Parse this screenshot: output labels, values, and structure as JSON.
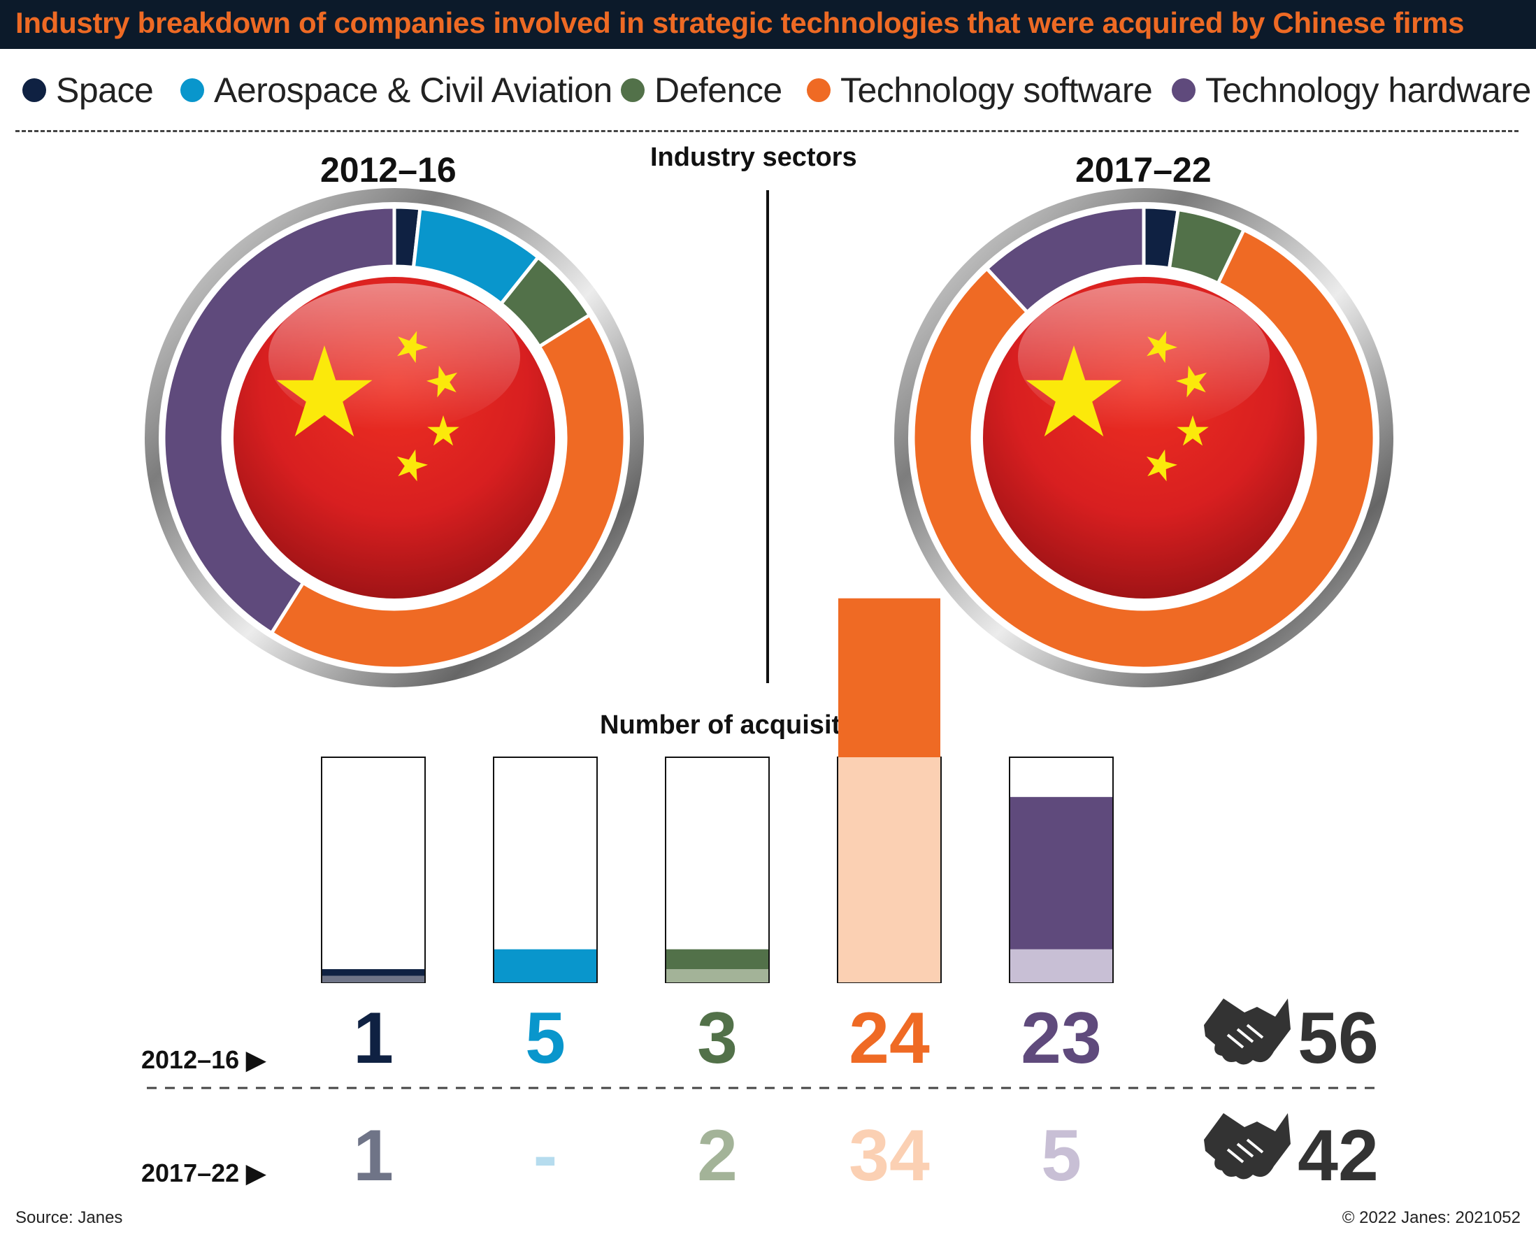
{
  "title": "Industry breakdown of companies involved in strategic technologies that were acquired by Chinese firms",
  "legend": [
    {
      "label": "Space",
      "color": "#0f2142"
    },
    {
      "label": "Aerospace & Civil Aviation",
      "color": "#0996cc"
    },
    {
      "label": "Defence",
      "color": "#527149"
    },
    {
      "label": "Technology software",
      "color": "#ef6a24"
    },
    {
      "label": "Technology hardware",
      "color": "#5f4a7c"
    }
  ],
  "donut_headings": {
    "left": "2012–16",
    "center": "Industry sectors",
    "right": "2017–22"
  },
  "bars_heading": "Number of acquisitions",
  "row_labels": {
    "row1": "2012–16 ▶",
    "row2": "2017–22 ▶"
  },
  "totals": {
    "row1": "56",
    "row2": "42"
  },
  "icons": {
    "flag_emblem": "china-flag-icon",
    "total_marker": "handshake-icon"
  },
  "chart_data": [
    {
      "type": "pie",
      "title": "2012–16",
      "categories": [
        "Space",
        "Aerospace & Civil Aviation",
        "Defence",
        "Technology software",
        "Technology hardware"
      ],
      "values": [
        1,
        5,
        3,
        24,
        23
      ],
      "colors": [
        "#0f2142",
        "#0996cc",
        "#527149",
        "#ef6a24",
        "#5f4a7c"
      ]
    },
    {
      "type": "pie",
      "title": "2017–22",
      "categories": [
        "Space",
        "Aerospace & Civil Aviation",
        "Defence",
        "Technology software",
        "Technology hardware"
      ],
      "values": [
        1,
        0,
        2,
        34,
        5
      ],
      "colors": [
        "#0f2142",
        "#0996cc",
        "#527149",
        "#ef6a24",
        "#5f4a7c"
      ]
    },
    {
      "type": "bar",
      "title": "Number of acquisitions",
      "categories": [
        "Space",
        "Aerospace & Civil Aviation",
        "Defence",
        "Technology software",
        "Technology hardware"
      ],
      "ylim": [
        0,
        34
      ],
      "series": [
        {
          "name": "2012–16",
          "values": [
            1,
            5,
            3,
            24,
            23
          ],
          "labels": [
            "1",
            "5",
            "3",
            "24",
            "23"
          ],
          "colors": [
            "#0f2142",
            "#0996cc",
            "#527149",
            "#ef6a24",
            "#5f4a7c"
          ]
        },
        {
          "name": "2017–22",
          "values": [
            1,
            0,
            2,
            34,
            5
          ],
          "labels": [
            "1",
            "-",
            "2",
            "34",
            "5"
          ],
          "colors": [
            "#6f7487",
            "#b6dcee",
            "#a3b398",
            "#fbd0b3",
            "#c8bfd5"
          ]
        }
      ]
    }
  ],
  "footer": {
    "source": "Source: Janes",
    "credit": "© 2022 Janes: 2021052"
  }
}
